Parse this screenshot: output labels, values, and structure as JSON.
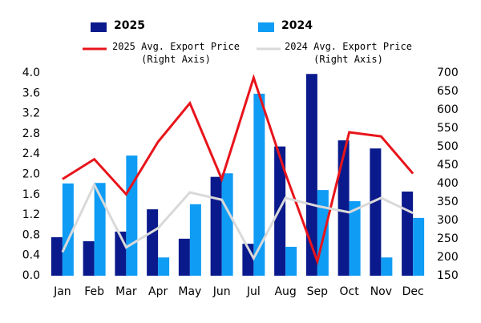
{
  "chart_data": {
    "type": "bar",
    "categories": [
      "Jan",
      "Feb",
      "Mar",
      "Apr",
      "May",
      "Jun",
      "Jul",
      "Aug",
      "Sep",
      "Oct",
      "Nov",
      "Dec"
    ],
    "series": [
      {
        "name": "2025",
        "type": "bar",
        "color": "#0a1a8c",
        "values": [
          0.76,
          0.68,
          0.87,
          1.31,
          0.73,
          1.95,
          0.63,
          2.55,
          3.98,
          2.67,
          2.51,
          1.66
        ]
      },
      {
        "name": "2024",
        "type": "bar",
        "color": "#0f9cf5",
        "values": [
          1.82,
          1.83,
          2.37,
          0.36,
          1.41,
          2.02,
          3.59,
          0.57,
          1.69,
          1.47,
          0.36,
          1.14
        ]
      },
      {
        "name": "2025 Avg. Export Price\n(Right Axis)",
        "type": "line",
        "axis": "y2",
        "color": "#e8141b",
        "values": [
          412,
          466,
          371,
          513,
          618,
          412,
          687,
          427,
          189,
          539,
          528,
          427
        ]
      },
      {
        "name": "2024 Avg. Export Price\n(Right Axis)",
        "type": "line",
        "axis": "y2",
        "color": "#d9d9d9",
        "values": [
          214,
          397,
          227,
          279,
          376,
          356,
          197,
          361,
          339,
          322,
          361,
          320
        ]
      }
    ],
    "ylim": [
      0,
      4
    ],
    "yticks": [
      {
        "value": 0,
        "label": "0.0"
      },
      0.4,
      0.8,
      1.2,
      1.6,
      {
        "value": 2,
        "label": "2.0"
      },
      2.4,
      2.8,
      3.2,
      3.6,
      {
        "value": 4,
        "label": "4.0"
      }
    ],
    "y2lim": [
      150,
      700
    ],
    "y2ticks": [
      150,
      200,
      250,
      300,
      350,
      400,
      450,
      500,
      550,
      600,
      650,
      700
    ]
  }
}
